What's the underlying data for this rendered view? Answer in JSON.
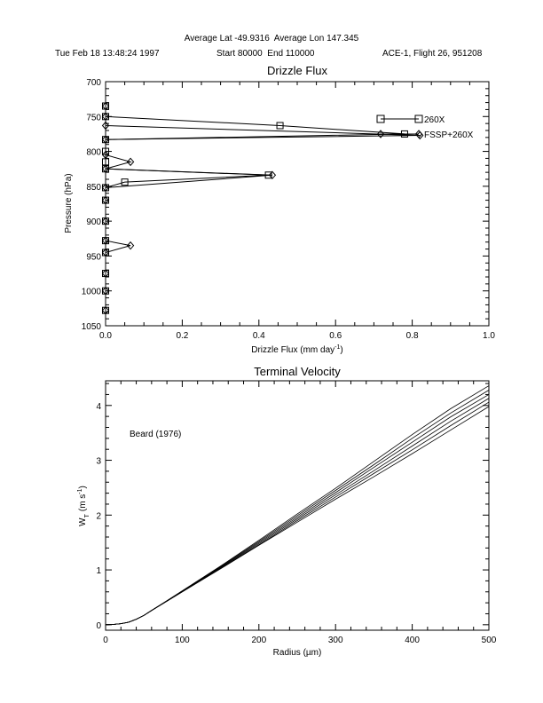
{
  "header": {
    "average_lat_label": "Average Lat",
    "average_lat": "-49.9316",
    "average_lon_label": "Average Lon",
    "average_lon": "147.345",
    "date": "Tue Feb 18 13:48:24 1997",
    "start_label": "Start",
    "start": "80000",
    "end_label": "End",
    "end": "110000",
    "flight": "ACE-1, Flight 26, 951208"
  },
  "chart_data": [
    {
      "type": "line",
      "title": "Drizzle Flux",
      "xlabel_main": "Drizzle Flux (mm day",
      "xlabel_sup": "-1",
      "xlabel_end": ")",
      "ylabel": "Pressure (hPa)",
      "xlim": [
        0.0,
        1.0
      ],
      "ylim": [
        1050,
        700
      ],
      "y_inverted": true,
      "xticks": [
        "0.0",
        "0.2",
        "0.4",
        "0.6",
        "0.8",
        "1.0"
      ],
      "yticks": [
        "700",
        "750",
        "800",
        "850",
        "900",
        "950",
        "1000",
        "1050"
      ],
      "legend_placement": "top-right",
      "series": [
        {
          "name": "260X",
          "marker": "square",
          "points": [
            [
              0,
              735
            ],
            [
              0,
              750
            ],
            [
              0.455,
              763
            ],
            [
              0.78,
              775
            ],
            [
              0,
              783
            ],
            [
              0,
              800
            ],
            [
              0,
              815
            ],
            [
              0,
              825
            ],
            [
              0.425,
              834
            ],
            [
              0.05,
              844
            ],
            [
              0,
              852
            ],
            [
              0,
              870
            ],
            [
              0,
              900
            ],
            [
              0,
              928
            ],
            [
              0,
              945
            ],
            [
              0,
              975
            ],
            [
              0,
              1000
            ],
            [
              0,
              1028
            ]
          ]
        },
        {
          "name": "FSSP+260X",
          "marker": "diamond",
          "points": [
            [
              0,
              735
            ],
            [
              0,
              750
            ],
            [
              0,
              763
            ],
            [
              0.82,
              777
            ],
            [
              0,
              783
            ],
            [
              0,
              805
            ],
            [
              0.065,
              815
            ],
            [
              0,
              825
            ],
            [
              0.435,
              834
            ],
            [
              0,
              852
            ],
            [
              0,
              870
            ],
            [
              0,
              900
            ],
            [
              0,
              928
            ],
            [
              0.065,
              935
            ],
            [
              0,
              945
            ],
            [
              0,
              975
            ],
            [
              0,
              1000
            ],
            [
              0,
              1028
            ]
          ]
        }
      ]
    },
    {
      "type": "line",
      "title": "Terminal Velocity",
      "xlabel": "Radius (µm)",
      "ylabel_main": "W",
      "ylabel_sub": "T",
      "ylabel_unit": "(m s",
      "ylabel_sup": "-1",
      "ylabel_end": ")",
      "annotation": "Beard (1976)",
      "xlim": [
        0,
        500
      ],
      "ylim": [
        -0.1,
        4.45
      ],
      "xticks": [
        "0",
        "100",
        "200",
        "300",
        "400",
        "500"
      ],
      "yticks": [
        "0",
        "1",
        "2",
        "3",
        "4"
      ],
      "x": [
        0,
        10,
        20,
        30,
        40,
        50,
        60,
        80,
        100,
        150,
        200,
        250,
        300,
        350,
        400,
        450,
        500
      ],
      "series": [
        {
          "values": [
            0,
            0.005,
            0.02,
            0.045,
            0.1,
            0.17,
            0.26,
            0.43,
            0.6,
            1.02,
            1.45,
            1.87,
            2.29,
            2.7,
            3.12,
            3.55,
            3.98
          ]
        },
        {
          "values": [
            0,
            0.005,
            0.02,
            0.045,
            0.1,
            0.17,
            0.26,
            0.43,
            0.6,
            1.03,
            1.46,
            1.9,
            2.33,
            2.76,
            3.19,
            3.63,
            4.06
          ]
        },
        {
          "values": [
            0,
            0.005,
            0.02,
            0.045,
            0.1,
            0.17,
            0.26,
            0.43,
            0.605,
            1.04,
            1.48,
            1.93,
            2.37,
            2.81,
            3.26,
            3.71,
            4.13
          ]
        },
        {
          "values": [
            0,
            0.005,
            0.02,
            0.045,
            0.1,
            0.17,
            0.26,
            0.435,
            0.61,
            1.05,
            1.5,
            1.96,
            2.41,
            2.87,
            3.33,
            3.79,
            4.2
          ]
        },
        {
          "values": [
            0,
            0.005,
            0.02,
            0.045,
            0.1,
            0.17,
            0.26,
            0.435,
            0.615,
            1.06,
            1.52,
            1.99,
            2.45,
            2.92,
            3.4,
            3.86,
            4.28
          ]
        },
        {
          "values": [
            0,
            0.005,
            0.02,
            0.045,
            0.1,
            0.17,
            0.26,
            0.44,
            0.62,
            1.07,
            1.54,
            2.02,
            2.49,
            2.98,
            3.47,
            3.94,
            4.36
          ]
        }
      ]
    }
  ]
}
